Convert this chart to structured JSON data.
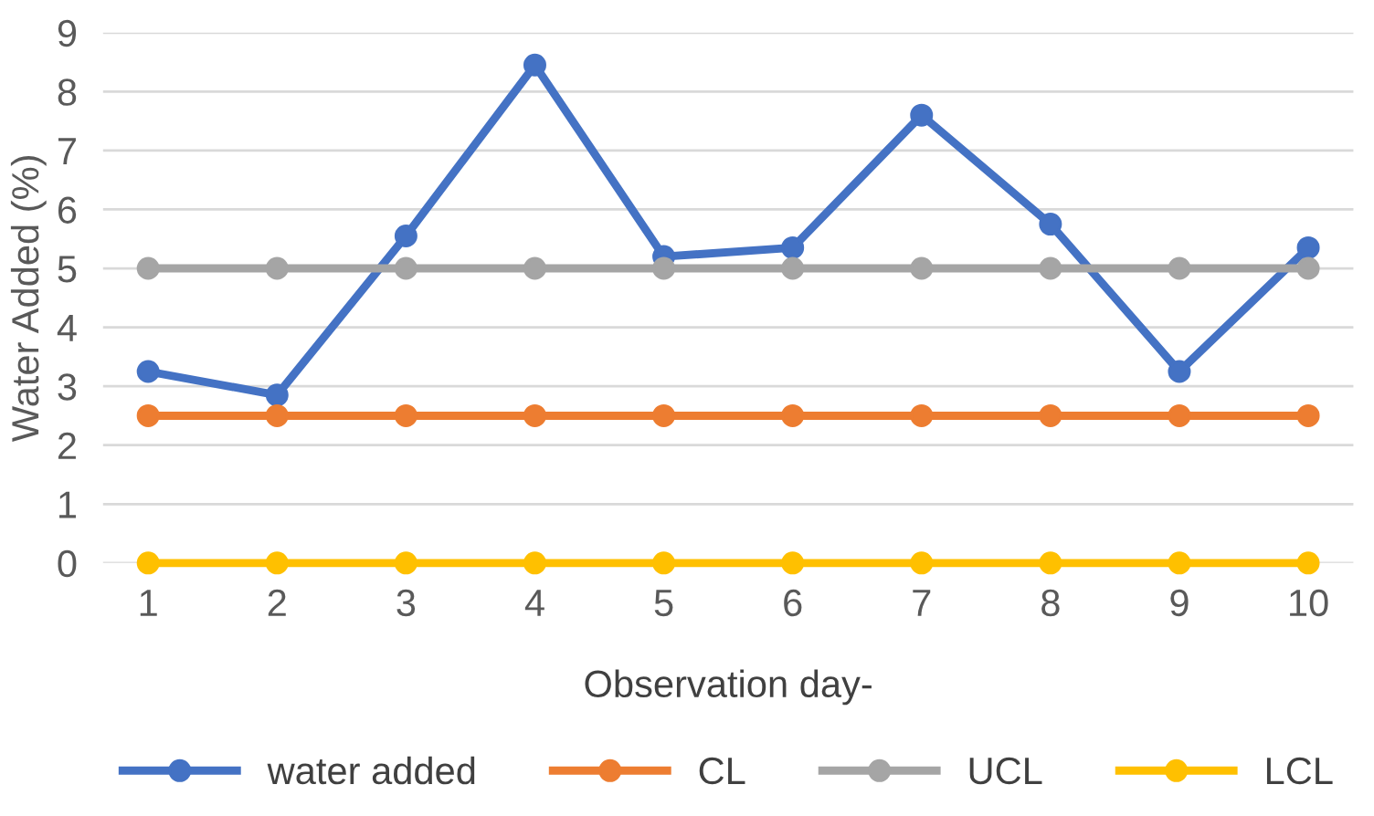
{
  "chart_data": {
    "type": "line",
    "xlabel": "Observation day-",
    "ylabel": "Water Added (%)",
    "categories": [
      "1",
      "2",
      "3",
      "4",
      "5",
      "6",
      "7",
      "8",
      "9",
      "10"
    ],
    "series": [
      {
        "name": "water added",
        "color": "#4472c4",
        "values": [
          3.25,
          2.85,
          5.55,
          8.45,
          5.2,
          5.35,
          7.6,
          5.75,
          3.25,
          5.35
        ]
      },
      {
        "name": "CL",
        "color": "#ed7d31",
        "values": [
          2.5,
          2.5,
          2.5,
          2.5,
          2.5,
          2.5,
          2.5,
          2.5,
          2.5,
          2.5
        ]
      },
      {
        "name": "UCL",
        "color": "#a5a5a5",
        "values": [
          5,
          5,
          5,
          5,
          5,
          5,
          5,
          5,
          5,
          5
        ]
      },
      {
        "name": "LCL",
        "color": "#ffc000",
        "values": [
          0,
          0,
          0,
          0,
          0,
          0,
          0,
          0,
          0,
          0
        ]
      }
    ],
    "ylim": [
      0,
      9
    ],
    "yticks": [
      0,
      1,
      2,
      3,
      4,
      5,
      6,
      7,
      8,
      9
    ],
    "grid": "y",
    "legend": "bottom",
    "marker": "circle",
    "line_style": "solid"
  }
}
